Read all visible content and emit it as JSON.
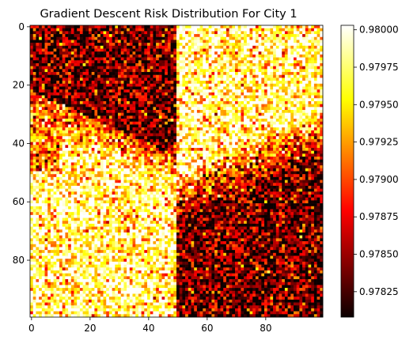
{
  "chart_data": {
    "type": "heatmap",
    "title": "Gradient Descent Risk Distribution For City 1",
    "xlabel": "",
    "ylabel": "",
    "grid": false,
    "rows": 100,
    "cols": 100,
    "xlim": [
      0,
      99
    ],
    "ylim": [
      99,
      0
    ],
    "x_ticks": [
      0,
      20,
      40,
      60,
      80
    ],
    "y_ticks": [
      0,
      20,
      40,
      60,
      80
    ],
    "colormap": "hot",
    "colorbar": {
      "vmin": 0.97808,
      "vmax": 0.98003,
      "ticks": [
        "0.97825",
        "0.97850",
        "0.97875",
        "0.97900",
        "0.97925",
        "0.97950",
        "0.97975",
        "0.98000"
      ],
      "placement": "right"
    },
    "pattern": {
      "description_of_layout": "quadrant-like structure split at column 49; diagonal bands from top-left to bottom-right",
      "split_column": 49,
      "low_value_regions": [
        "upper-left quadrant upper portion",
        "lower-right quadrant lower portion"
      ],
      "high_value_regions": [
        "upper-right quadrant",
        "lower-left quadrant"
      ],
      "low_mean": 0.9784,
      "high_mean": 0.97975,
      "noise": 0.00045
    }
  }
}
